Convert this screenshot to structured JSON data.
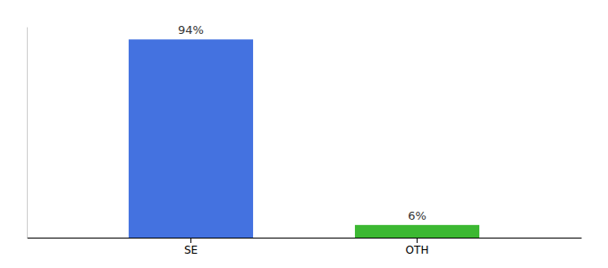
{
  "chart_data": {
    "type": "bar",
    "categories": [
      "SE",
      "OTH"
    ],
    "values": [
      94,
      6
    ],
    "value_labels": [
      "94%",
      "6%"
    ],
    "colors": [
      "#4472e0",
      "#3cb832"
    ],
    "ylim": [
      0,
      100
    ],
    "grid": false,
    "data_labels": true,
    "tick_labels": "x"
  }
}
